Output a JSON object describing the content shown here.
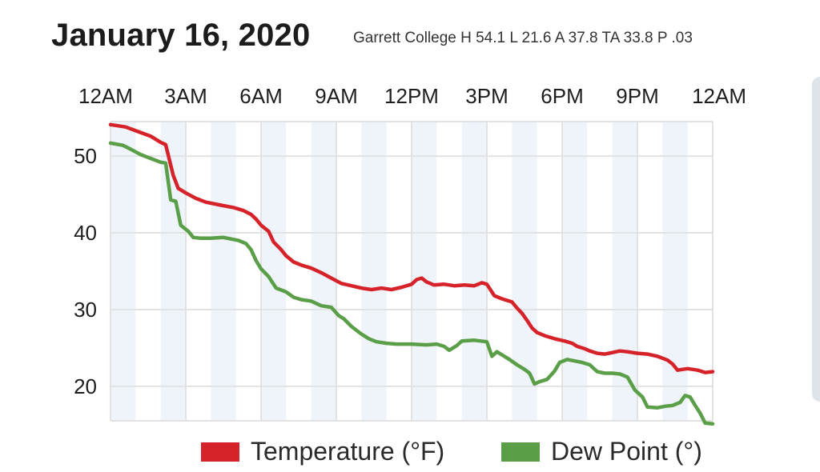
{
  "header": {
    "title": "January 16, 2020",
    "subtitle": "Garrett College  H 54.1 L 21.6 A 37.8 TA 33.8 P .03"
  },
  "chart_data": {
    "type": "line",
    "title": "January 16, 2020",
    "subtitle": "Garrett College  H 54.1 L 21.6 A 37.8 TA 33.8 P .03",
    "xlabel": "",
    "ylabel": "",
    "x_unit": "hours since midnight",
    "xlim": [
      0,
      24
    ],
    "ylim": [
      15.5,
      54.5
    ],
    "x_ticks": [
      {
        "value": 0,
        "label": "12AM"
      },
      {
        "value": 3,
        "label": "3AM"
      },
      {
        "value": 6,
        "label": "6AM"
      },
      {
        "value": 9,
        "label": "9AM"
      },
      {
        "value": 12,
        "label": "12PM"
      },
      {
        "value": 15,
        "label": "3PM"
      },
      {
        "value": 18,
        "label": "6PM"
      },
      {
        "value": 21,
        "label": "9PM"
      },
      {
        "value": 24,
        "label": "12AM"
      }
    ],
    "y_ticks": [
      20,
      30,
      40,
      50
    ],
    "grid": true,
    "x_axis_position": "top",
    "legend_position": "bottom",
    "series": [
      {
        "name": "Temperature (°F)",
        "color": "#d62229",
        "points": [
          [
            0.0,
            54.1
          ],
          [
            0.6,
            53.8
          ],
          [
            1.1,
            53.2
          ],
          [
            1.6,
            52.6
          ],
          [
            2.0,
            51.8
          ],
          [
            2.2,
            51.5
          ],
          [
            2.5,
            47.5
          ],
          [
            2.7,
            45.8
          ],
          [
            3.0,
            45.2
          ],
          [
            3.4,
            44.5
          ],
          [
            3.8,
            44.0
          ],
          [
            4.4,
            43.6
          ],
          [
            4.9,
            43.3
          ],
          [
            5.3,
            42.9
          ],
          [
            5.6,
            42.4
          ],
          [
            5.8,
            41.8
          ],
          [
            6.0,
            41.0
          ],
          [
            6.3,
            40.2
          ],
          [
            6.5,
            38.8
          ],
          [
            6.8,
            37.8
          ],
          [
            7.0,
            37.0
          ],
          [
            7.3,
            36.2
          ],
          [
            7.6,
            35.8
          ],
          [
            8.0,
            35.4
          ],
          [
            8.4,
            34.8
          ],
          [
            8.8,
            34.1
          ],
          [
            9.2,
            33.4
          ],
          [
            9.6,
            33.1
          ],
          [
            10.0,
            32.8
          ],
          [
            10.4,
            32.6
          ],
          [
            10.8,
            32.8
          ],
          [
            11.2,
            32.6
          ],
          [
            11.6,
            32.9
          ],
          [
            12.0,
            33.3
          ],
          [
            12.2,
            33.9
          ],
          [
            12.4,
            34.1
          ],
          [
            12.6,
            33.6
          ],
          [
            12.9,
            33.2
          ],
          [
            13.3,
            33.3
          ],
          [
            13.7,
            33.1
          ],
          [
            14.1,
            33.2
          ],
          [
            14.5,
            33.1
          ],
          [
            14.8,
            33.5
          ],
          [
            15.0,
            33.3
          ],
          [
            15.3,
            31.8
          ],
          [
            15.6,
            31.4
          ],
          [
            16.0,
            31.0
          ],
          [
            16.2,
            30.2
          ],
          [
            16.4,
            29.5
          ],
          [
            16.6,
            28.6
          ],
          [
            16.8,
            27.6
          ],
          [
            17.0,
            27.0
          ],
          [
            17.3,
            26.6
          ],
          [
            17.7,
            26.2
          ],
          [
            18.1,
            25.9
          ],
          [
            18.4,
            25.6
          ],
          [
            18.6,
            25.2
          ],
          [
            18.9,
            24.9
          ],
          [
            19.1,
            24.6
          ],
          [
            19.4,
            24.3
          ],
          [
            19.7,
            24.2
          ],
          [
            20.0,
            24.4
          ],
          [
            20.3,
            24.6
          ],
          [
            20.6,
            24.5
          ],
          [
            21.0,
            24.3
          ],
          [
            21.4,
            24.2
          ],
          [
            21.8,
            23.9
          ],
          [
            22.2,
            23.4
          ],
          [
            22.4,
            22.9
          ],
          [
            22.6,
            22.1
          ],
          [
            23.0,
            22.3
          ],
          [
            23.4,
            22.1
          ],
          [
            23.7,
            21.8
          ],
          [
            24.0,
            21.9
          ]
        ]
      },
      {
        "name": "Dew Point (°)",
        "color": "#5a9e47",
        "points": [
          [
            0.0,
            51.7
          ],
          [
            0.5,
            51.4
          ],
          [
            0.8,
            50.9
          ],
          [
            1.2,
            50.2
          ],
          [
            1.6,
            49.7
          ],
          [
            2.0,
            49.2
          ],
          [
            2.2,
            49.1
          ],
          [
            2.4,
            44.3
          ],
          [
            2.6,
            44.1
          ],
          [
            2.8,
            41.0
          ],
          [
            3.1,
            40.2
          ],
          [
            3.3,
            39.4
          ],
          [
            3.6,
            39.3
          ],
          [
            4.0,
            39.3
          ],
          [
            4.5,
            39.4
          ],
          [
            4.8,
            39.2
          ],
          [
            5.1,
            39.0
          ],
          [
            5.4,
            38.6
          ],
          [
            5.6,
            37.8
          ],
          [
            5.8,
            36.4
          ],
          [
            6.0,
            35.3
          ],
          [
            6.3,
            34.3
          ],
          [
            6.6,
            32.8
          ],
          [
            7.0,
            32.3
          ],
          [
            7.3,
            31.6
          ],
          [
            7.6,
            31.3
          ],
          [
            8.0,
            31.1
          ],
          [
            8.4,
            30.5
          ],
          [
            8.8,
            30.3
          ],
          [
            9.1,
            29.2
          ],
          [
            9.3,
            28.8
          ],
          [
            9.6,
            27.8
          ],
          [
            10.0,
            26.8
          ],
          [
            10.3,
            26.2
          ],
          [
            10.6,
            25.8
          ],
          [
            11.0,
            25.6
          ],
          [
            11.4,
            25.5
          ],
          [
            12.0,
            25.5
          ],
          [
            12.6,
            25.4
          ],
          [
            13.0,
            25.5
          ],
          [
            13.3,
            25.2
          ],
          [
            13.5,
            24.7
          ],
          [
            13.8,
            25.3
          ],
          [
            14.0,
            25.9
          ],
          [
            14.5,
            26.0
          ],
          [
            15.0,
            25.8
          ],
          [
            15.2,
            23.9
          ],
          [
            15.4,
            24.5
          ],
          [
            15.7,
            23.9
          ],
          [
            15.9,
            23.5
          ],
          [
            16.2,
            22.8
          ],
          [
            16.5,
            22.2
          ],
          [
            16.7,
            21.7
          ],
          [
            16.9,
            20.3
          ],
          [
            17.1,
            20.6
          ],
          [
            17.4,
            20.9
          ],
          [
            17.7,
            22.0
          ],
          [
            17.9,
            23.1
          ],
          [
            18.2,
            23.5
          ],
          [
            18.5,
            23.3
          ],
          [
            18.8,
            23.1
          ],
          [
            19.1,
            22.8
          ],
          [
            19.4,
            21.9
          ],
          [
            19.7,
            21.7
          ],
          [
            20.0,
            21.7
          ],
          [
            20.3,
            21.6
          ],
          [
            20.6,
            21.2
          ],
          [
            20.9,
            19.5
          ],
          [
            21.2,
            18.6
          ],
          [
            21.4,
            17.3
          ],
          [
            21.8,
            17.2
          ],
          [
            22.1,
            17.4
          ],
          [
            22.4,
            17.5
          ],
          [
            22.7,
            17.9
          ],
          [
            22.9,
            18.8
          ],
          [
            23.1,
            18.6
          ],
          [
            23.3,
            17.5
          ],
          [
            23.5,
            16.5
          ],
          [
            23.7,
            15.2
          ],
          [
            24.0,
            15.1
          ]
        ]
      }
    ]
  },
  "legend": {
    "temperature_label": "Temperature (°F)",
    "dewpoint_label": "Dew Point (°)"
  }
}
